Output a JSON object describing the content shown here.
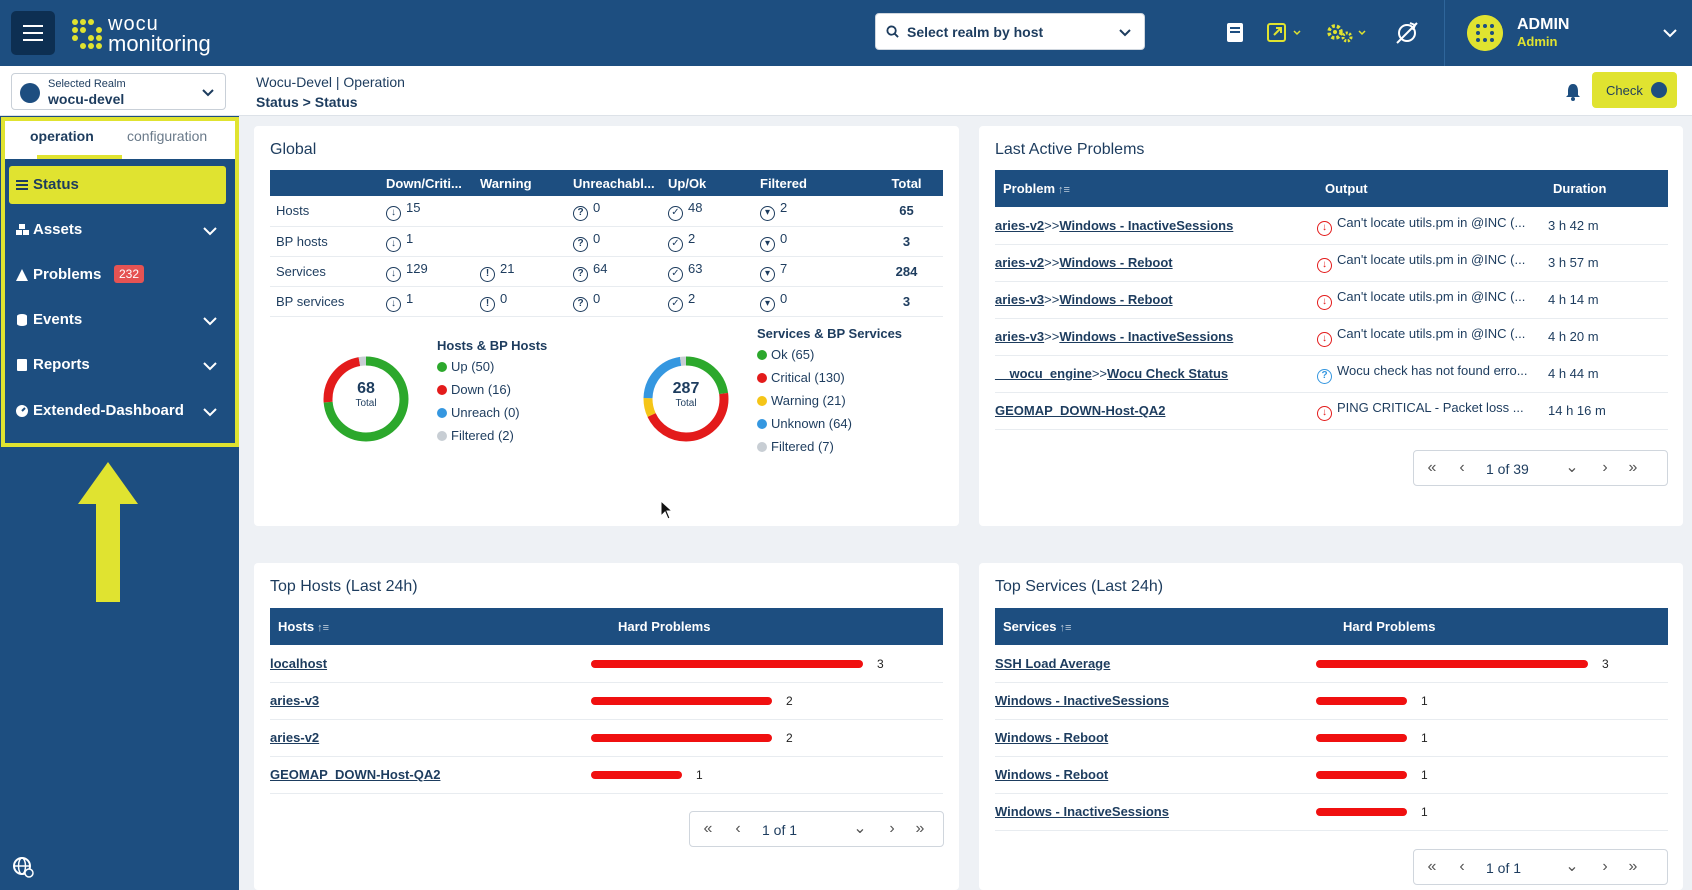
{
  "header": {
    "logo": {
      "line1": "wocu",
      "line2": "monitoring"
    },
    "realm_search": {
      "placeholder": "Select realm by host"
    },
    "user": {
      "name": "ADMIN",
      "role": "Admin"
    }
  },
  "subbar": {
    "selected_realm_label": "Selected Realm",
    "selected_realm": "wocu-devel",
    "breadcrumb_top": "Wocu-Devel | Operation",
    "breadcrumb_bottom": "Status > Status",
    "check_label": "Check"
  },
  "sidebar": {
    "tabs": [
      "operation",
      "configuration"
    ],
    "items": [
      {
        "label": "Status"
      },
      {
        "label": "Assets"
      },
      {
        "label": "Problems",
        "badge": "232"
      },
      {
        "label": "Events"
      },
      {
        "label": "Reports"
      },
      {
        "label": "Extended-Dashboard"
      }
    ]
  },
  "global": {
    "title": "Global",
    "columns": [
      "",
      "Down/Criti...",
      "Warning",
      "Unreachabl...",
      "Up/Ok",
      "Filtered",
      "Total"
    ],
    "rows": [
      {
        "name": "Hosts",
        "down": "15",
        "warning": "",
        "unreach": "0",
        "up": "48",
        "filtered": "2",
        "total": "65"
      },
      {
        "name": "BP hosts",
        "down": "1",
        "warning": "",
        "unreach": "0",
        "up": "2",
        "filtered": "0",
        "total": "3"
      },
      {
        "name": "Services",
        "down": "129",
        "warning": "21",
        "unreach": "64",
        "up": "63",
        "filtered": "7",
        "total": "284"
      },
      {
        "name": "BP services",
        "down": "1",
        "warning": "0",
        "unreach": "0",
        "up": "2",
        "filtered": "0",
        "total": "3"
      }
    ],
    "hosts_donut": {
      "total": "68",
      "total_label": "Total",
      "title": "Hosts & BP Hosts",
      "legend": [
        "Up (50)",
        "Down (16)",
        "Unreach (0)",
        "Filtered (2)"
      ],
      "values": [
        50,
        16,
        0,
        2
      ],
      "colors": [
        "#2ca82c",
        "#e31b1b",
        "#3597e0",
        "#c8ced4"
      ]
    },
    "services_donut": {
      "total": "287",
      "total_label": "Total",
      "title": "Services & BP Services",
      "legend": [
        "Ok (65)",
        "Critical (130)",
        "Warning (21)",
        "Unknown (64)",
        "Filtered (7)"
      ],
      "values": [
        65,
        130,
        21,
        64,
        7
      ],
      "colors": [
        "#2ca82c",
        "#e31b1b",
        "#f5c518",
        "#3597e0",
        "#c8ced4"
      ]
    }
  },
  "problems": {
    "title": "Last Active Problems",
    "columns": [
      "Problem",
      "Output",
      "Duration"
    ],
    "rows": [
      {
        "host": "aries-v2",
        "sep": ">>",
        "service": "Windows - InactiveSessions",
        "status": "down",
        "output": "Can't locate utils.pm in @INC (...",
        "duration": "3 h 42 m"
      },
      {
        "host": "aries-v2",
        "sep": ">>",
        "service": "Windows - Reboot",
        "status": "down",
        "output": "Can't locate utils.pm in @INC (...",
        "duration": "3 h 57 m"
      },
      {
        "host": "aries-v3",
        "sep": ">>",
        "service": "Windows - Reboot",
        "status": "down",
        "output": "Can't locate utils.pm in @INC (...",
        "duration": "4 h 14 m"
      },
      {
        "host": "aries-v3",
        "sep": ">>",
        "service": "Windows - InactiveSessions",
        "status": "down",
        "output": "Can't locate utils.pm in @INC (...",
        "duration": "4 h 20 m"
      },
      {
        "host": "__wocu_engine",
        "sep": ">>",
        "service": "Wocu Check Status",
        "status": "unknown",
        "output": "Wocu check has not found erro...",
        "duration": "4 h 44 m"
      },
      {
        "host": "GEOMAP_DOWN-Host-QA2",
        "sep": "",
        "service": "",
        "status": "down",
        "output": "PING CRITICAL - Packet loss ...",
        "duration": "14 h 16 m"
      }
    ],
    "pager": "1 of 39"
  },
  "top_hosts": {
    "title": "Top Hosts (Last 24h)",
    "columns": [
      "Hosts",
      "Hard Problems"
    ],
    "rows": [
      {
        "name": "localhost",
        "value": "3"
      },
      {
        "name": "aries-v3",
        "value": "2"
      },
      {
        "name": "aries-v2",
        "value": "2"
      },
      {
        "name": "GEOMAP_DOWN-Host-QA2",
        "value": "1"
      }
    ],
    "max": 3,
    "pager": "1 of 1"
  },
  "top_services": {
    "title": "Top Services (Last 24h)",
    "columns": [
      "Services",
      "Hard Problems"
    ],
    "rows": [
      {
        "name": "SSH Load Average",
        "value": "3"
      },
      {
        "name": "Windows - InactiveSessions",
        "value": "1"
      },
      {
        "name": "Windows - Reboot",
        "value": "1"
      },
      {
        "name": "Windows - Reboot",
        "value": "1"
      },
      {
        "name": "Windows - InactiveSessions",
        "value": "1"
      }
    ],
    "max": 3,
    "pager": "1 of 1"
  }
}
